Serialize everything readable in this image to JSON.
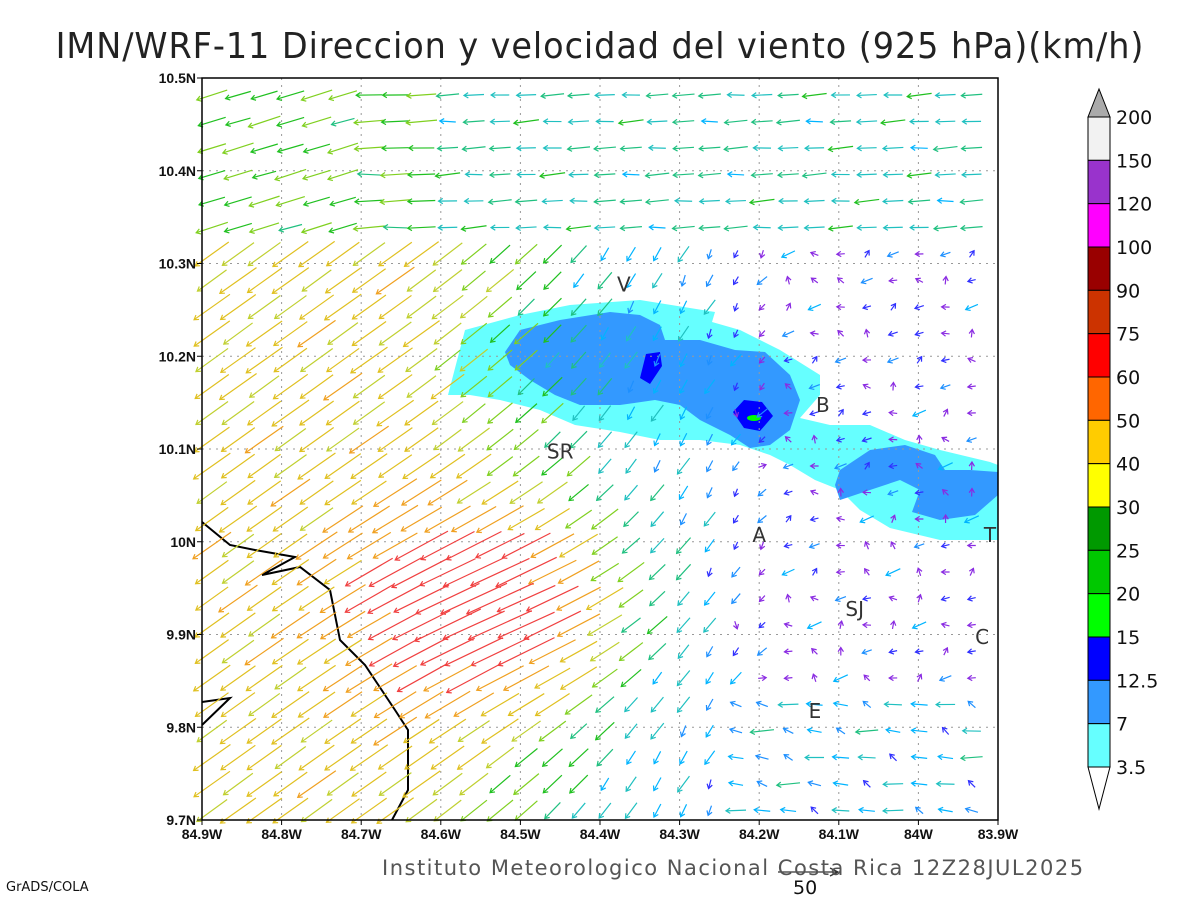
{
  "title": "IMN/WRF-11 Direccion y velocidad del viento (925 hPa)(km/h)",
  "credit": "Instituto Meteorologico Nacional Costa Rica  12Z28JUL2025",
  "software": "GrADS/COLA",
  "map": {
    "lon_range": [
      -84.9,
      -83.9
    ],
    "lat_range": [
      9.7,
      10.5
    ],
    "x_ticks": [
      "84.9W",
      "84.8W",
      "84.7W",
      "84.6W",
      "84.5W",
      "84.4W",
      "84.3W",
      "84.2W",
      "84.1W",
      "84W",
      "83.9W"
    ],
    "y_ticks": [
      "9.7N",
      "9.8N",
      "9.9N",
      "10N",
      "10.1N",
      "10.2N",
      "10.3N",
      "10.4N",
      "10.5N"
    ],
    "cities": [
      {
        "label": "V",
        "lon": -84.37,
        "lat": 10.27
      },
      {
        "label": "SR",
        "lon": -84.45,
        "lat": 10.09
      },
      {
        "label": "B",
        "lon": -84.12,
        "lat": 10.14
      },
      {
        "label": "A",
        "lon": -84.2,
        "lat": 10.0
      },
      {
        "label": "SJ",
        "lon": -84.08,
        "lat": 9.92
      },
      {
        "label": "C",
        "lon": -83.92,
        "lat": 9.89
      },
      {
        "label": "E",
        "lon": -84.13,
        "lat": 9.81
      },
      {
        "label": "T",
        "lon": -83.91,
        "lat": 10.0
      }
    ],
    "vector_key": {
      "value": "50",
      "units": "km/h"
    }
  },
  "colorbar": {
    "labels": [
      "200",
      "150",
      "120",
      "100",
      "90",
      "75",
      "60",
      "50",
      "40",
      "30",
      "25",
      "20",
      "15",
      "12.5",
      "7",
      "3.5"
    ],
    "colors": [
      "#f2f2f2",
      "#9933cc",
      "#ff00ff",
      "#990000",
      "#cc3300",
      "#ff0000",
      "#ff6600",
      "#ffcc00",
      "#ffff00",
      "#009900",
      "#00c800",
      "#00ff00",
      "#0000ff",
      "#3399ff",
      "#66ffff"
    ],
    "over_color": "#aaaaaa",
    "under_color": "#ffffff"
  }
}
